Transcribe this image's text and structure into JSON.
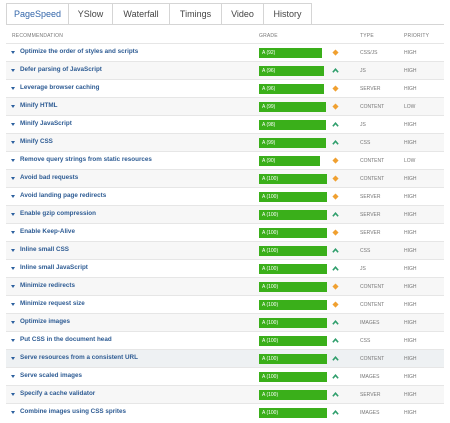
{
  "tabs": [
    {
      "label": "PageSpeed",
      "active": true
    },
    {
      "label": "YSlow",
      "active": false
    },
    {
      "label": "Waterfall",
      "active": false
    },
    {
      "label": "Timings",
      "active": false
    },
    {
      "label": "Video",
      "active": false
    },
    {
      "label": "History",
      "active": false
    }
  ],
  "columns": {
    "recommendation": "RECOMMENDATION",
    "grade": "GRADE",
    "type": "TYPE",
    "priority": "PRIORITY"
  },
  "colors": {
    "grade_bar": "#3aaf1a",
    "link": "#2d5b93",
    "up_arrow": "#2e9e6b",
    "diamond": "#f0a030"
  },
  "rows": [
    {
      "recommendation": "Optimize the order of styles and scripts",
      "grade": "A (92)",
      "score": 92,
      "trend_icon": "diamond-icon",
      "type": "CSS/JS",
      "priority": "HIGH"
    },
    {
      "recommendation": "Defer parsing of JavaScript",
      "grade": "A (96)",
      "score": 96,
      "trend_icon": "up-arrow-icon",
      "type": "JS",
      "priority": "HIGH"
    },
    {
      "recommendation": "Leverage browser caching",
      "grade": "A (96)",
      "score": 96,
      "trend_icon": "diamond-icon",
      "type": "SERVER",
      "priority": "HIGH"
    },
    {
      "recommendation": "Minify HTML",
      "grade": "A (99)",
      "score": 99,
      "trend_icon": "diamond-icon",
      "type": "CONTENT",
      "priority": "LOW"
    },
    {
      "recommendation": "Minify JavaScript",
      "grade": "A (98)",
      "score": 98,
      "trend_icon": "up-arrow-icon",
      "type": "JS",
      "priority": "HIGH"
    },
    {
      "recommendation": "Minify CSS",
      "grade": "A (99)",
      "score": 99,
      "trend_icon": "up-arrow-icon",
      "type": "CSS",
      "priority": "HIGH"
    },
    {
      "recommendation": "Remove query strings from static resources",
      "grade": "A (90)",
      "score": 90,
      "trend_icon": "diamond-icon",
      "type": "CONTENT",
      "priority": "LOW"
    },
    {
      "recommendation": "Avoid bad requests",
      "grade": "A (100)",
      "score": 100,
      "trend_icon": "diamond-icon",
      "type": "CONTENT",
      "priority": "HIGH"
    },
    {
      "recommendation": "Avoid landing page redirects",
      "grade": "A (100)",
      "score": 100,
      "trend_icon": "diamond-icon",
      "type": "SERVER",
      "priority": "HIGH"
    },
    {
      "recommendation": "Enable gzip compression",
      "grade": "A (100)",
      "score": 100,
      "trend_icon": "up-arrow-icon",
      "type": "SERVER",
      "priority": "HIGH"
    },
    {
      "recommendation": "Enable Keep-Alive",
      "grade": "A (100)",
      "score": 100,
      "trend_icon": "diamond-icon",
      "type": "SERVER",
      "priority": "HIGH"
    },
    {
      "recommendation": "Inline small CSS",
      "grade": "A (100)",
      "score": 100,
      "trend_icon": "up-arrow-icon",
      "type": "CSS",
      "priority": "HIGH"
    },
    {
      "recommendation": "Inline small JavaScript",
      "grade": "A (100)",
      "score": 100,
      "trend_icon": "up-arrow-icon",
      "type": "JS",
      "priority": "HIGH"
    },
    {
      "recommendation": "Minimize redirects",
      "grade": "A (100)",
      "score": 100,
      "trend_icon": "diamond-icon",
      "type": "CONTENT",
      "priority": "HIGH"
    },
    {
      "recommendation": "Minimize request size",
      "grade": "A (100)",
      "score": 100,
      "trend_icon": "diamond-icon",
      "type": "CONTENT",
      "priority": "HIGH"
    },
    {
      "recommendation": "Optimize images",
      "grade": "A (100)",
      "score": 100,
      "trend_icon": "up-arrow-icon",
      "type": "IMAGES",
      "priority": "HIGH"
    },
    {
      "recommendation": "Put CSS in the document head",
      "grade": "A (100)",
      "score": 100,
      "trend_icon": "up-arrow-icon",
      "type": "CSS",
      "priority": "HIGH"
    },
    {
      "recommendation": "Serve resources from a consistent URL",
      "grade": "A (100)",
      "score": 100,
      "trend_icon": "up-arrow-icon",
      "type": "CONTENT",
      "priority": "HIGH",
      "hover": true
    },
    {
      "recommendation": "Serve scaled images",
      "grade": "A (100)",
      "score": 100,
      "trend_icon": "up-arrow-icon",
      "type": "IMAGES",
      "priority": "HIGH"
    },
    {
      "recommendation": "Specify a cache validator",
      "grade": "A (100)",
      "score": 100,
      "trend_icon": "up-arrow-icon",
      "type": "SERVER",
      "priority": "HIGH"
    },
    {
      "recommendation": "Combine images using CSS sprites",
      "grade": "A (100)",
      "score": 100,
      "trend_icon": "up-arrow-icon",
      "type": "IMAGES",
      "priority": "HIGH"
    }
  ]
}
